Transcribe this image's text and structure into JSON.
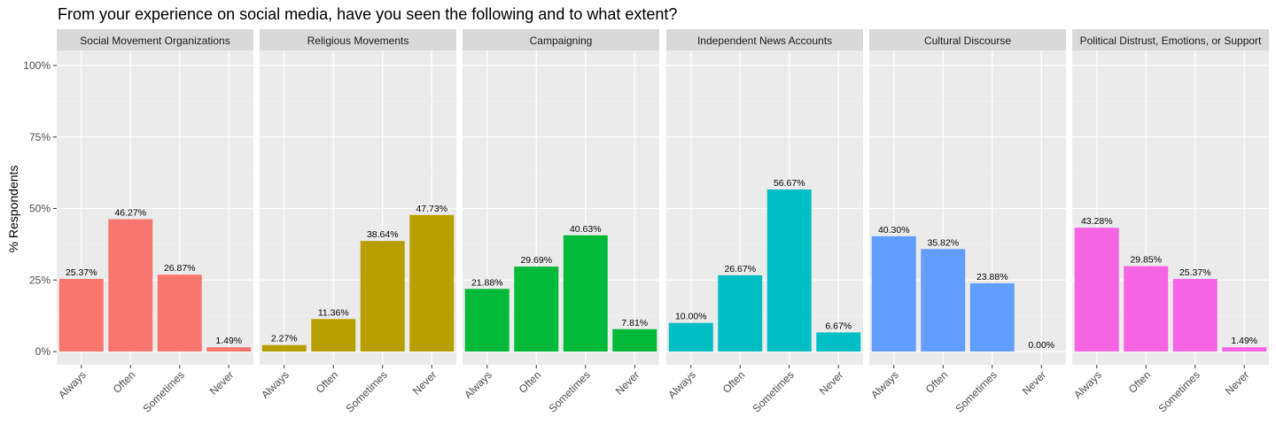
{
  "chart_data": {
    "type": "bar",
    "title": "From your experience on social media, have you seen the following and to what extent?",
    "ylabel": "% Respondents",
    "xlabel": "",
    "categories": [
      "Always",
      "Often",
      "Sometimes",
      "Never"
    ],
    "ylim": [
      0,
      1.05
    ],
    "yticks": [
      "0%",
      "25%",
      "50%",
      "75%",
      "100%"
    ],
    "ytick_values": [
      0,
      0.25,
      0.5,
      0.75,
      1.0
    ],
    "grid": true,
    "panels": [
      {
        "name": "Social Movement Organizations",
        "color": "#F8766D",
        "values": [
          0.2537,
          0.4627,
          0.2687,
          0.0149
        ],
        "labels": [
          "25.37%",
          "46.27%",
          "26.87%",
          "1.49%"
        ]
      },
      {
        "name": "Religious Movements",
        "color": "#B79F00",
        "values": [
          0.0227,
          0.1136,
          0.3864,
          0.4773
        ],
        "labels": [
          "2.27%",
          "11.36%",
          "38.64%",
          "47.73%"
        ]
      },
      {
        "name": "Campaigning",
        "color": "#00BA38",
        "values": [
          0.2188,
          0.2969,
          0.4063,
          0.0781
        ],
        "labels": [
          "21.88%",
          "29.69%",
          "40.63%",
          "7.81%"
        ]
      },
      {
        "name": "Independent News Accounts",
        "color": "#00BFC4",
        "values": [
          0.1,
          0.2667,
          0.5667,
          0.0667
        ],
        "labels": [
          "10.00%",
          "26.67%",
          "56.67%",
          "6.67%"
        ]
      },
      {
        "name": "Cultural Discourse",
        "color": "#619CFF",
        "values": [
          0.403,
          0.3582,
          0.2388,
          0.0
        ],
        "labels": [
          "40.30%",
          "35.82%",
          "23.88%",
          "0.00%"
        ]
      },
      {
        "name": "Political Distrust, Emotions, or Support",
        "color": "#F564E3",
        "values": [
          0.4328,
          0.2985,
          0.2537,
          0.0149
        ],
        "labels": [
          "43.28%",
          "29.85%",
          "25.37%",
          "1.49%"
        ]
      }
    ]
  }
}
